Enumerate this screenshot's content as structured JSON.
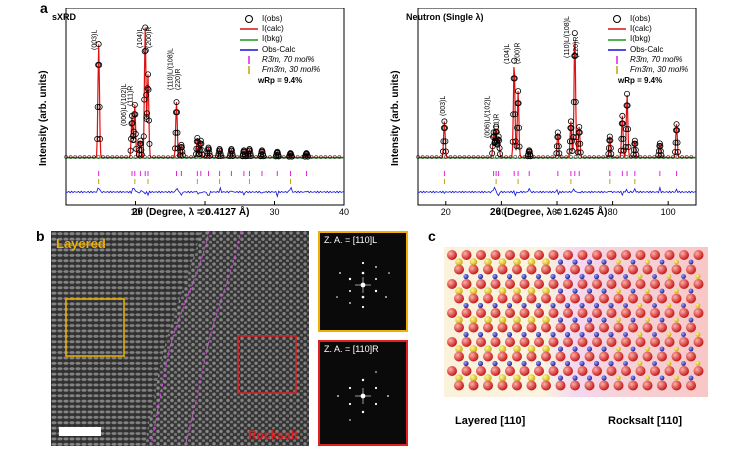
{
  "panel_a": {
    "label": "a",
    "sxrd": {
      "title": "sXRD",
      "ylabel": "Intensity (arb. units)",
      "xlabel": "2θ (Degree, λ = 0.4127 Å)",
      "xticks": [
        "10",
        "20",
        "30",
        "40"
      ],
      "wrp": "wRp = 9.4%",
      "peak_labels": [
        "(003)L",
        "(006)L/(102)L",
        "(111)R",
        "(104)L",
        "(200)R",
        "(110)L/(108)L",
        "(220)R"
      ]
    },
    "neutron": {
      "title": "Neutron (Single λ)",
      "xlabel": "2θ (Degree, λ = 1.6245 Å)",
      "xticks": [
        "20",
        "40",
        "60",
        "80",
        "100"
      ],
      "wrp": "wRp = 9.4%",
      "peak_labels": [
        "(003)L",
        "(006)L/(102)L",
        "(111)R",
        "(104)L",
        "(200)R",
        "(110)L/(108)L",
        "(220)R"
      ]
    },
    "legend": [
      "I(obs)",
      "I(calc)",
      "I(bkg)",
      "Obs-Calc",
      "R3̄m, 70 mol%",
      "Fm3̄m, 30 mol%"
    ]
  },
  "panel_b": {
    "label": "b",
    "layered": "Layered",
    "rocksalt": "Rocksalt",
    "za_top": "Z. A. = [110]L",
    "za_bottom": "Z. A. = [110]R"
  },
  "panel_c": {
    "label": "c",
    "left_caption": "Layered [110]",
    "right_caption": "Rocksalt [110]"
  },
  "chart_data": [
    {
      "type": "line",
      "title": "sXRD",
      "xlabel": "2θ (Degree, λ = 0.4127 Å)",
      "ylabel": "Intensity (arb. units)",
      "xlim": [
        0,
        40
      ],
      "series": [
        {
          "name": "I(obs)",
          "x": [
            4.7,
            9.5,
            9.9,
            10.7,
            11.4,
            11.8,
            15.9,
            16.6,
            18.9,
            19.4,
            20.5,
            22.1,
            23.8,
            25.6,
            26.4,
            28.2,
            30.4,
            32.3,
            34.6
          ],
          "y": [
            0.82,
            0.3,
            0.38,
            0.12,
            0.94,
            0.6,
            0.4,
            0.09,
            0.14,
            0.12,
            0.07,
            0.06,
            0.06,
            0.05,
            0.06,
            0.05,
            0.04,
            0.03,
            0.03
          ]
        }
      ]
    },
    {
      "type": "line",
      "title": "Neutron (Single λ)",
      "xlabel": "2θ (Degree, λ = 1.6245 Å)",
      "xlim": [
        10,
        110
      ],
      "series": [
        {
          "name": "I(obs)",
          "x": [
            19.5,
            37.2,
            38.1,
            39.0,
            44.6,
            46.0,
            50.0,
            60.3,
            65.0,
            66.4,
            68.0,
            79.0,
            83.5,
            85.2,
            88.0,
            97.0,
            103.0
          ],
          "y": [
            0.26,
            0.18,
            0.22,
            0.15,
            0.7,
            0.48,
            0.05,
            0.18,
            0.26,
            0.9,
            0.22,
            0.15,
            0.3,
            0.46,
            0.12,
            0.1,
            0.24
          ]
        }
      ]
    }
  ]
}
